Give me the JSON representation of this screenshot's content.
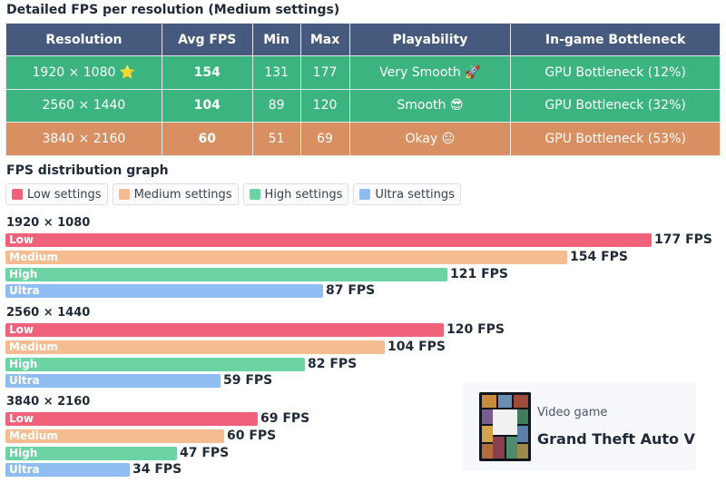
{
  "table_title": "Detailed FPS per resolution (Medium settings)",
  "graph_title": "FPS distribution graph",
  "table": {
    "headers": [
      "Resolution",
      "Avg FPS",
      "Min",
      "Max",
      "Playability",
      "In-game Bottleneck"
    ],
    "rows": [
      {
        "resolution": "1920 × 1080 ⭐",
        "avg": "154",
        "min": "131",
        "max": "177",
        "playability": "Very Smooth 🚀",
        "bottleneck": "GPU Bottleneck (12%)",
        "color": "#3cb47f"
      },
      {
        "resolution": "2560 × 1440",
        "avg": "104",
        "min": "89",
        "max": "120",
        "playability": "Smooth 😎",
        "bottleneck": "GPU Bottleneck (32%)",
        "color": "#3cb47f"
      },
      {
        "resolution": "3840 × 2160",
        "avg": "60",
        "min": "51",
        "max": "69",
        "playability": "Okay 😐",
        "bottleneck": "GPU Bottleneck (53%)",
        "color": "#d88f62"
      }
    ]
  },
  "chart_data": {
    "type": "bar",
    "orientation": "horizontal",
    "legend": [
      {
        "name": "Low settings",
        "color": "#f0627a"
      },
      {
        "name": "Medium settings",
        "color": "#f5bc92"
      },
      {
        "name": "High settings",
        "color": "#6cd3a4"
      },
      {
        "name": "Ultra settings",
        "color": "#8fbdf2"
      }
    ],
    "groups": [
      {
        "label": "1920 × 1080",
        "bars": [
          {
            "name": "Low",
            "value": 177,
            "text": "177 FPS"
          },
          {
            "name": "Medium",
            "value": 154,
            "text": "154 FPS"
          },
          {
            "name": "High",
            "value": 121,
            "text": "121 FPS"
          },
          {
            "name": "Ultra",
            "value": 87,
            "text": "87 FPS"
          }
        ]
      },
      {
        "label": "2560 × 1440",
        "bars": [
          {
            "name": "Low",
            "value": 120,
            "text": "120 FPS"
          },
          {
            "name": "Medium",
            "value": 104,
            "text": "104 FPS"
          },
          {
            "name": "High",
            "value": 82,
            "text": "82 FPS"
          },
          {
            "name": "Ultra",
            "value": 59,
            "text": "59 FPS"
          }
        ]
      },
      {
        "label": "3840 × 2160",
        "bars": [
          {
            "name": "Low",
            "value": 69,
            "text": "69 FPS"
          },
          {
            "name": "Medium",
            "value": 60,
            "text": "60 FPS"
          },
          {
            "name": "High",
            "value": 47,
            "text": "47 FPS"
          },
          {
            "name": "Ultra",
            "value": 34,
            "text": "34 FPS"
          }
        ]
      }
    ]
  },
  "card": {
    "subtitle": "Video game",
    "title": "Grand Theft Auto V",
    "cover_icon": "game-cover-icon"
  }
}
